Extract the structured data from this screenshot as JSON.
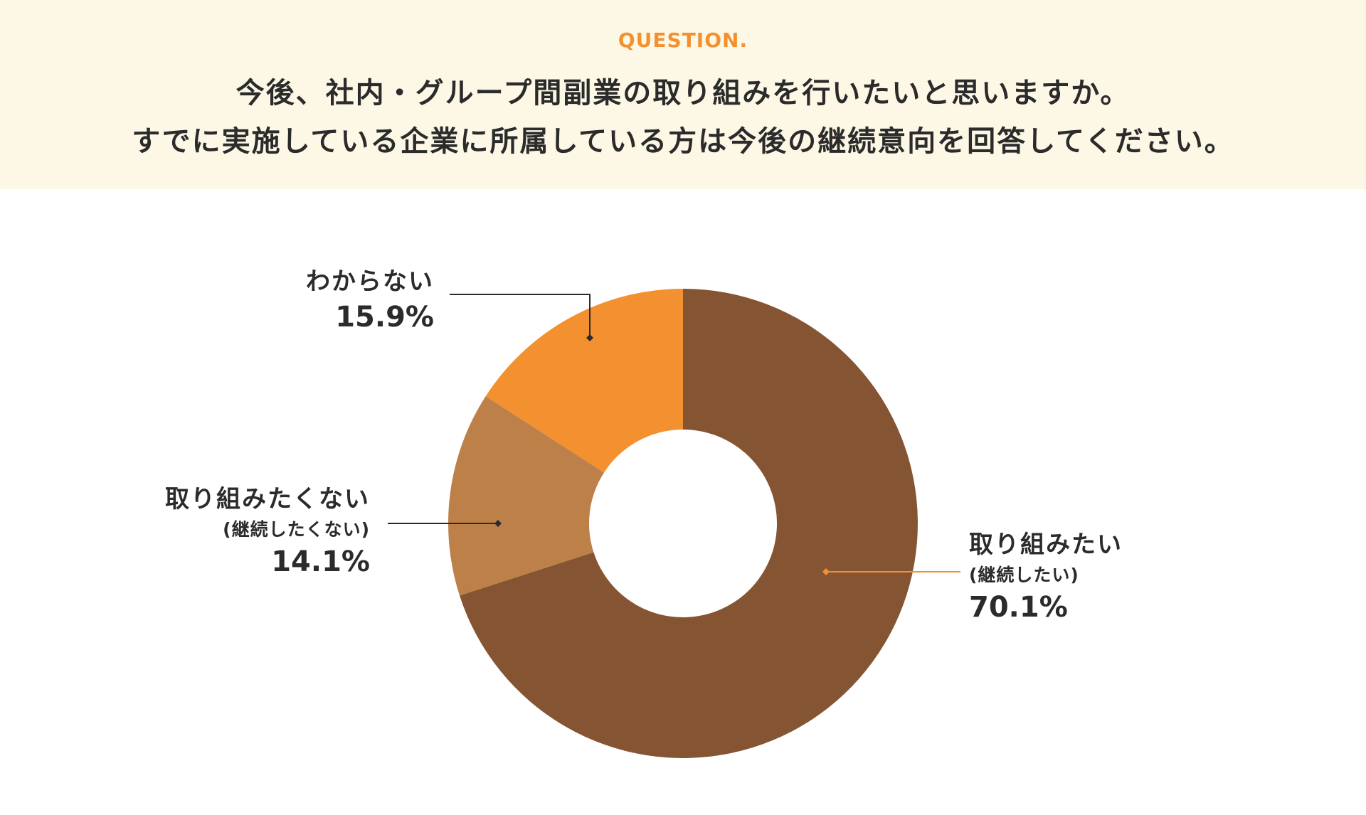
{
  "question": {
    "label": "QUESTION.",
    "line1": "今後、社内・グループ間副業の取り組みを行いたいと思いますか。",
    "line2": "すでに実施している企業に所属している方は今後の継続意向を回答してください。"
  },
  "colors": {
    "band_bg": "#fdf8e6",
    "label_accent": "#f39130",
    "text": "#2b2b2b",
    "slice_yes": "#855433",
    "slice_no": "#bd8049",
    "slice_unknown": "#f39130",
    "leader_yes": "#f39130",
    "leader_other": "#2b2b2b"
  },
  "chart_data": {
    "type": "pie",
    "donut": true,
    "start": "12 o'clock, clockwise",
    "slices": [
      {
        "key": "yes",
        "label": "取り組みたい",
        "sublabel": "(継続したい)",
        "value": 70.1,
        "value_label": "70.1%"
      },
      {
        "key": "no",
        "label": "取り組みたくない",
        "sublabel": "(継続したくない)",
        "value": 14.1,
        "value_label": "14.1%"
      },
      {
        "key": "unknown",
        "label": "わからない",
        "sublabel": "",
        "value": 15.9,
        "value_label": "15.9%"
      }
    ]
  }
}
